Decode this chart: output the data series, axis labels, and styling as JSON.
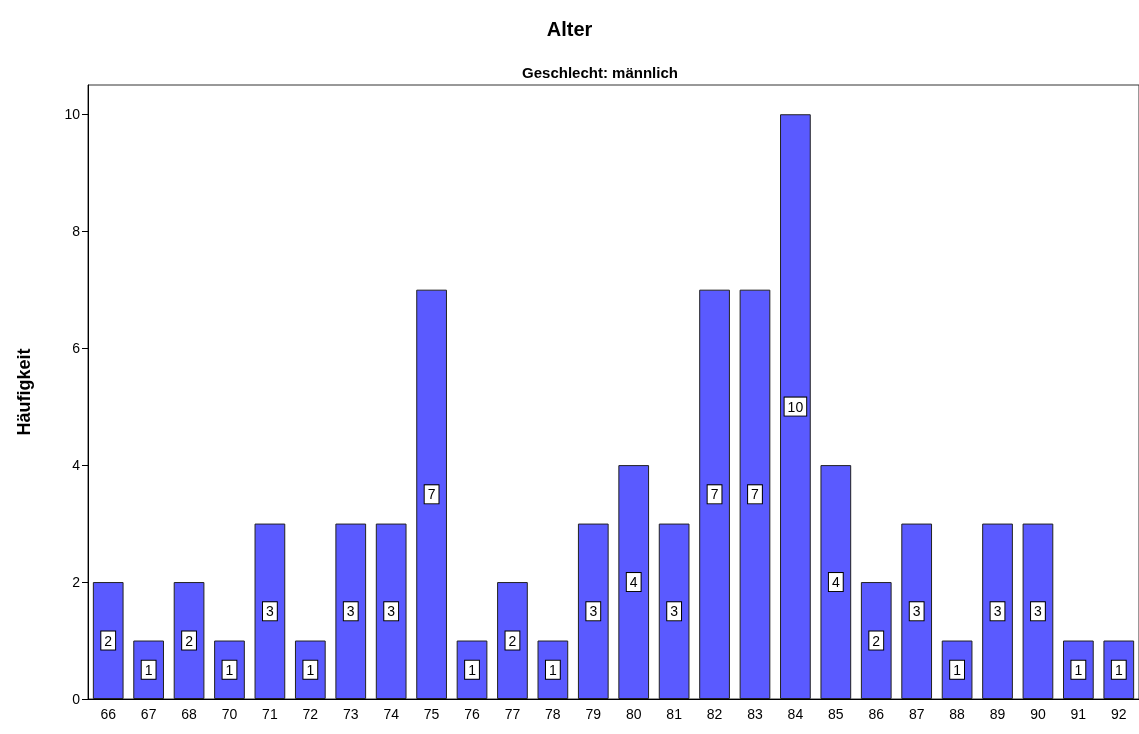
{
  "chart_data": {
    "type": "bar",
    "title": "Alter",
    "subtitle": "Geschlecht: männlich",
    "ylabel": "Häufigkeit",
    "categories": [
      "66",
      "67",
      "68",
      "70",
      "71",
      "72",
      "73",
      "74",
      "75",
      "76",
      "77",
      "78",
      "79",
      "80",
      "81",
      "82",
      "83",
      "84",
      "85",
      "86",
      "87",
      "88",
      "89",
      "90",
      "91",
      "92"
    ],
    "values": [
      2,
      1,
      2,
      1,
      3,
      1,
      3,
      3,
      7,
      1,
      2,
      1,
      3,
      4,
      3,
      7,
      7,
      10,
      4,
      2,
      3,
      1,
      3,
      3,
      1,
      1
    ],
    "color": "#5a5aff",
    "ylim": [
      0,
      10.5
    ],
    "yticks": [
      0,
      2,
      4,
      6,
      8,
      10
    ],
    "grid": false,
    "data_labels": true
  }
}
